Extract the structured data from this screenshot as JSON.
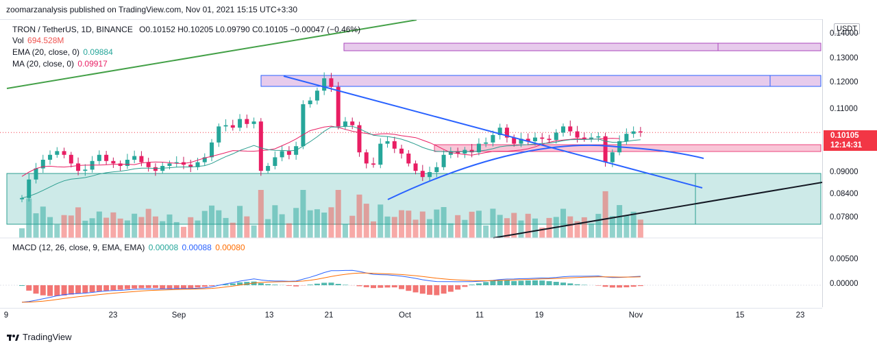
{
  "header": {
    "publisher": "zoomarzanalysis published on TradingView.com, Nov 01, 2021 15:15 UTC+3:30"
  },
  "legend": {
    "symbol": "TRON / TetherUS, 1D, BINANCE",
    "ohlc": "O0.10152  H0.10205  L0.09790  C0.10105  −0.00047 (−0.46%)",
    "vol_label": "Vol",
    "vol_value": "694.528M",
    "ema_label": "EMA (20, close, 0)",
    "ema_value": "0.09884",
    "ma_label": "MA (20, close, 0)",
    "ma_value": "0.09917",
    "macd_label": "MACD (12, 26, close, 9, EMA, EMA)",
    "macd_hist": "0.00008",
    "macd_line": "0.00088",
    "macd_signal": "0.00080"
  },
  "price_axis": {
    "currency": "USDT",
    "labels": [
      "0.14000",
      "0.13000",
      "0.12000",
      "0.11000",
      "0.09000",
      "0.08400",
      "0.07800"
    ],
    "last_price": "0.10105",
    "countdown": "12:14:31",
    "macd_labels": [
      "0.00500",
      "0.00000"
    ]
  },
  "time_axis": {
    "labels": [
      "9",
      "23",
      "Sep",
      "13",
      "21",
      "Oct",
      "11",
      "19",
      "Nov",
      "15",
      "23"
    ]
  },
  "brand": {
    "name": "TradingView"
  },
  "colors": {
    "up": "#26a69a",
    "down": "#ef5350",
    "ema": "#2a9d8f",
    "ma": "#e91e63",
    "macd_line": "#2962ff",
    "signal": "#ff6d00",
    "trendline_blue": "#2962ff",
    "trendline_green": "#43a047",
    "trendline_black": "#131722",
    "zone_teal": "#b2dfdb",
    "zone_purple": "#e1bee7",
    "zone_pink": "#f8bbd0"
  },
  "chart_data": {
    "type": "candlestick",
    "interval": "1D",
    "exchange": "BINANCE",
    "x": "daily, Aug 9 – Nov 1, 2021",
    "close_series_approx": [
      0.0745,
      0.082,
      0.0865,
      0.09,
      0.092,
      0.0935,
      0.092,
      0.0885,
      0.0855,
      0.086,
      0.0895,
      0.092,
      0.0895,
      0.0885,
      0.0875,
      0.09,
      0.0915,
      0.089,
      0.087,
      0.0855,
      0.0875,
      0.0885,
      0.089,
      0.088,
      0.087,
      0.089,
      0.091,
      0.097,
      0.1035,
      0.104,
      0.103,
      0.1065,
      0.1045,
      0.1055,
      0.0855,
      0.0875,
      0.091,
      0.0935,
      0.092,
      0.0955,
      0.1125,
      0.114,
      0.118,
      0.123,
      0.1195,
      0.1035,
      0.1055,
      0.104,
      0.093,
      0.0885,
      0.088,
      0.0965,
      0.0975,
      0.0945,
      0.0925,
      0.0885,
      0.0855,
      0.083,
      0.085,
      0.087,
      0.092,
      0.0935,
      0.0925,
      0.094,
      0.093,
      0.0965,
      0.097,
      0.1,
      0.103,
      0.099,
      0.0965,
      0.0985,
      0.0975,
      0.099,
      0.0985,
      0.098,
      0.101,
      0.1035,
      0.1015,
      0.099,
      0.0985,
      0.099,
      0.0995,
      0.089,
      0.093,
      0.0975,
      0.1005,
      0.1015,
      0.1011
    ],
    "open_series_approx": [
      0.074,
      0.0745,
      0.082,
      0.0865,
      0.09,
      0.092,
      0.0935,
      0.092,
      0.0885,
      0.0855,
      0.086,
      0.0895,
      0.092,
      0.0895,
      0.0885,
      0.0875,
      0.09,
      0.0915,
      0.089,
      0.087,
      0.0855,
      0.0875,
      0.0885,
      0.089,
      0.088,
      0.087,
      0.089,
      0.091,
      0.097,
      0.1035,
      0.104,
      0.103,
      0.1065,
      0.1045,
      0.1055,
      0.0855,
      0.0875,
      0.091,
      0.0935,
      0.092,
      0.0955,
      0.1125,
      0.114,
      0.118,
      0.123,
      0.1195,
      0.1035,
      0.1055,
      0.104,
      0.093,
      0.0885,
      0.088,
      0.0965,
      0.0975,
      0.0945,
      0.0925,
      0.0885,
      0.0855,
      0.083,
      0.085,
      0.087,
      0.092,
      0.0935,
      0.0925,
      0.094,
      0.093,
      0.0965,
      0.097,
      0.1,
      0.103,
      0.099,
      0.0965,
      0.0985,
      0.0975,
      0.099,
      0.0985,
      0.098,
      0.101,
      0.1035,
      0.1015,
      0.099,
      0.0985,
      0.099,
      0.0995,
      0.089,
      0.093,
      0.0975,
      0.1005,
      0.1015
    ],
    "last": {
      "open": 0.10152,
      "high": 0.10205,
      "low": 0.0979,
      "close": 0.10105,
      "change": -0.00047,
      "change_pct": -0.46
    },
    "volume_last": "694.528M",
    "ema20_last": 0.09884,
    "ma20_last": 0.09917,
    "ylim": [
      0.073,
      0.143
    ],
    "macd": {
      "hist": 8e-05,
      "line": 0.00088,
      "signal": 0.0008
    }
  }
}
